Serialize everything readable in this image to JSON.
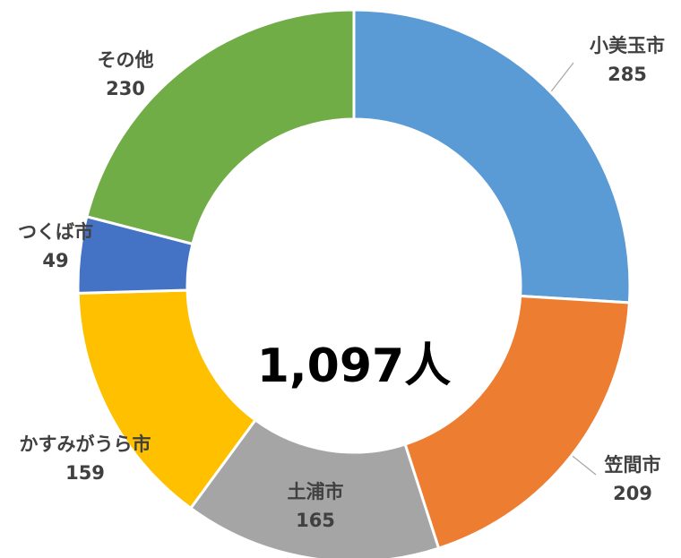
{
  "chart_data": {
    "type": "donut",
    "categories": [
      "小美玉市",
      "笠間市",
      "土浦市",
      "かすみがうら市",
      "つくば市",
      "その他"
    ],
    "values": [
      285,
      209,
      165,
      159,
      49,
      230
    ],
    "colors": [
      "#5b9bd5",
      "#ed7d31",
      "#a5a5a5",
      "#ffc000",
      "#4472c4",
      "#70ad47"
    ],
    "center_label": "1,097人"
  }
}
